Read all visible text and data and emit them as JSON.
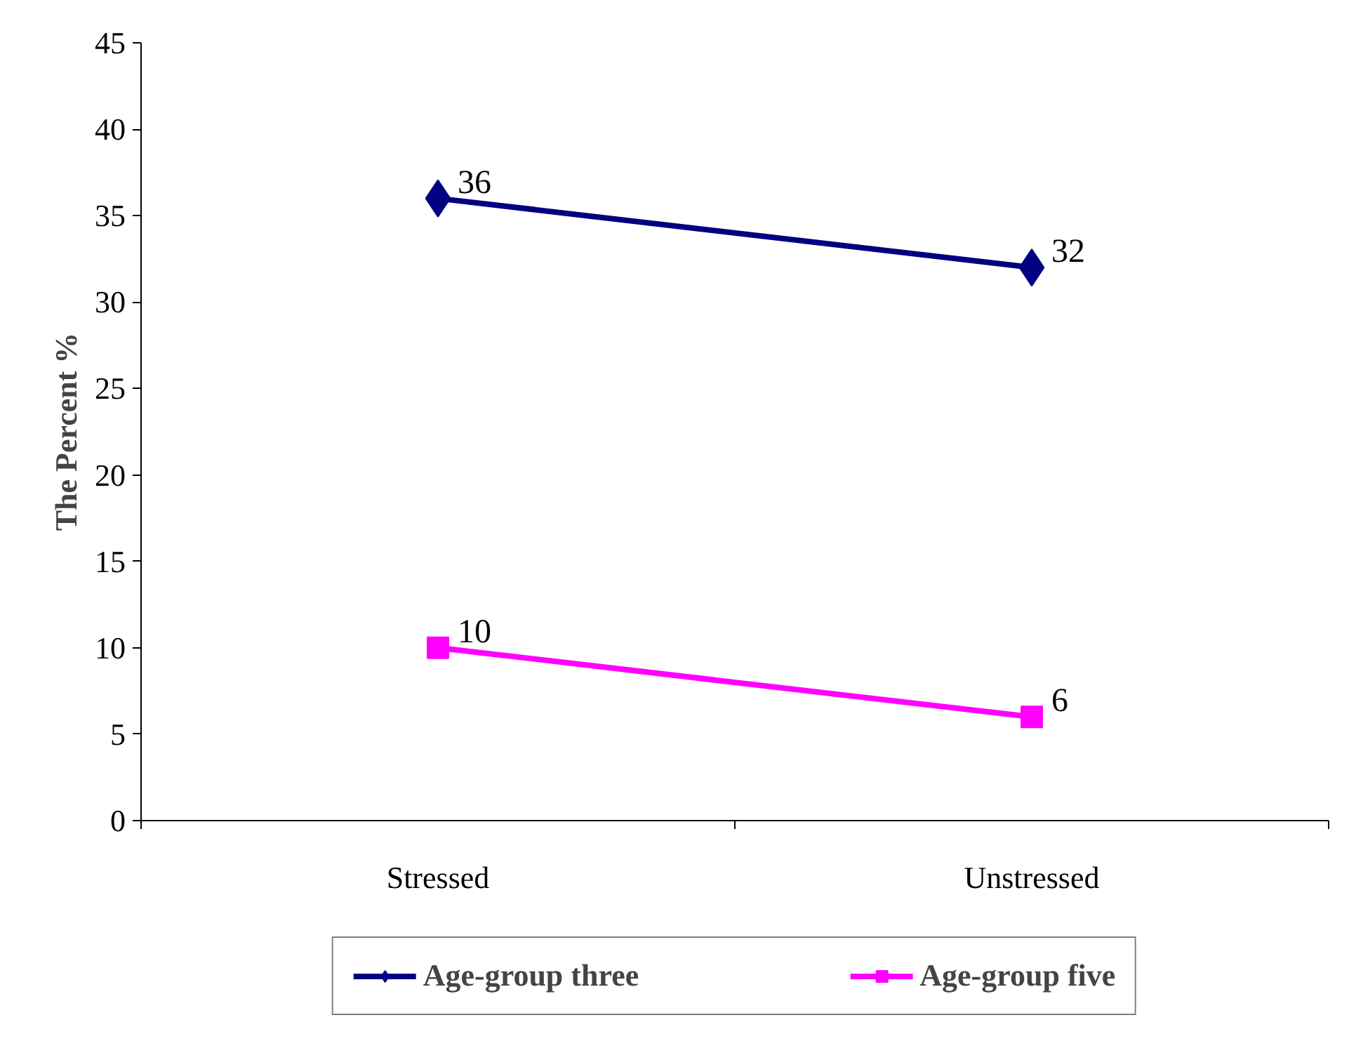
{
  "chart_data": {
    "type": "line",
    "ylabel": "The Percent %",
    "categories": [
      "Stressed",
      "Unstressed"
    ],
    "series": [
      {
        "name": "Age-group three",
        "color": "#000080",
        "values": [
          36,
          32
        ],
        "marker": "diamond"
      },
      {
        "name": "Age-group five",
        "color": "#ff00ff",
        "values": [
          10,
          6
        ],
        "marker": "square"
      }
    ],
    "ylim": [
      0,
      45
    ],
    "yticks": [
      0,
      5,
      10,
      15,
      20,
      25,
      30,
      35,
      40,
      45
    ],
    "grid": false,
    "legend": "bottom",
    "data_labels": true
  }
}
